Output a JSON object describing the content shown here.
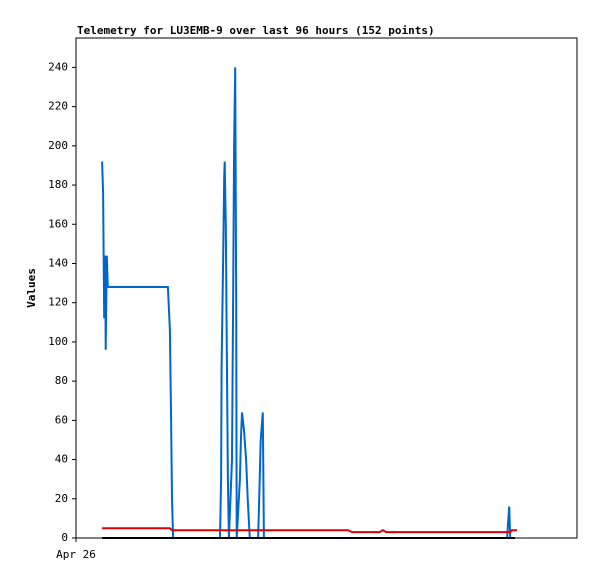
{
  "chart_data": {
    "type": "line",
    "title": "Telemetry for LU3EMB-9 over last 96 hours (152 points)",
    "ylabel": "Values",
    "xlim": [
      0,
      96
    ],
    "xticks": [
      {
        "value": 0,
        "label": "Apr 26"
      }
    ],
    "ylim": [
      0,
      255
    ],
    "yticks": [
      0,
      20,
      40,
      60,
      80,
      100,
      120,
      140,
      160,
      180,
      200,
      220,
      240
    ],
    "series": [
      {
        "color": "#0066cc",
        "x": [
          5.0,
          5.2,
          5.4,
          5.6,
          5.7,
          5.9,
          6.1,
          6.5,
          17.6,
          18.0,
          18.2,
          18.4,
          18.6,
          27.6,
          27.8,
          27.9,
          28.2,
          28.4,
          28.5,
          28.7,
          28.9,
          29.1,
          29.3,
          29.9,
          30.1,
          30.3,
          30.5,
          30.7,
          30.8,
          31.4,
          31.6,
          31.8,
          32.2,
          32.6,
          32.9,
          33.3,
          34.9,
          35.1,
          35.4,
          35.8,
          36.0,
          82.6,
          82.8,
          83.0,
          83.2
        ],
        "values": [
          192,
          176,
          112,
          144,
          96,
          144,
          128,
          128,
          128,
          106,
          64,
          20,
          0,
          0,
          30,
          88,
          144,
          184,
          192,
          160,
          96,
          30,
          0,
          40,
          120,
          200,
          240,
          120,
          0,
          30,
          50,
          64,
          55,
          40,
          20,
          0,
          0,
          20,
          50,
          64,
          0,
          0,
          8,
          16,
          0
        ]
      },
      {
        "color": "#dd0000",
        "x": [
          5.0,
          18.0,
          18.4,
          52.1,
          52.9,
          58.2,
          58.8,
          59.4,
          83.2,
          83.5,
          84.5
        ],
        "values": [
          5,
          5,
          4,
          4,
          3,
          3,
          4,
          3,
          3,
          4,
          4
        ]
      },
      {
        "color": "#000000",
        "x": [
          5.0,
          84.1
        ],
        "values": [
          0,
          0
        ]
      }
    ]
  }
}
